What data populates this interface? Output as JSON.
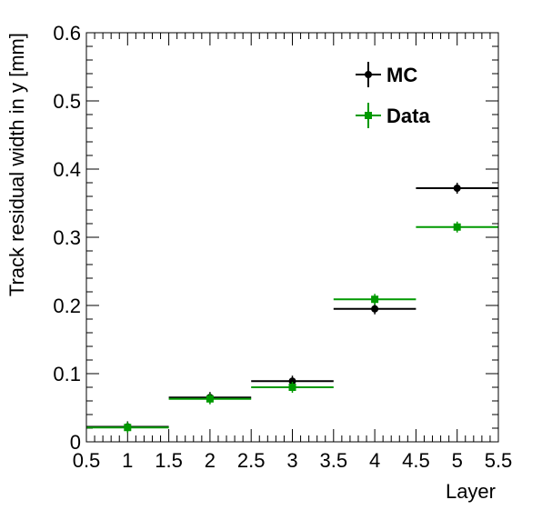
{
  "chart_data": {
    "type": "scatter",
    "xlabel": "Layer",
    "ylabel": "Track residual width in y [mm]",
    "xlim": [
      0.5,
      5.5
    ],
    "ylim": [
      0,
      0.6
    ],
    "x_ticks": [
      "0.5",
      "1",
      "1.5",
      "2",
      "2.5",
      "3",
      "3.5",
      "4",
      "4.5",
      "5",
      "5.5"
    ],
    "y_ticks": [
      "0",
      "0.1",
      "0.2",
      "0.3",
      "0.4",
      "0.5",
      "0.6"
    ],
    "grid": false,
    "legend_position": "top-right",
    "series": [
      {
        "name": "MC",
        "color": "#000000",
        "marker": "circle",
        "x": [
          1,
          2,
          3,
          4,
          5
        ],
        "x_err": [
          0.5,
          0.5,
          0.5,
          0.5,
          0.5
        ],
        "values": [
          0.022,
          0.065,
          0.089,
          0.195,
          0.372
        ]
      },
      {
        "name": "Data",
        "color": "#009900",
        "marker": "square",
        "x": [
          1,
          2,
          3,
          4,
          5
        ],
        "x_err": [
          0.5,
          0.5,
          0.5,
          0.5,
          0.5
        ],
        "values": [
          0.021,
          0.063,
          0.08,
          0.209,
          0.315
        ]
      }
    ]
  }
}
